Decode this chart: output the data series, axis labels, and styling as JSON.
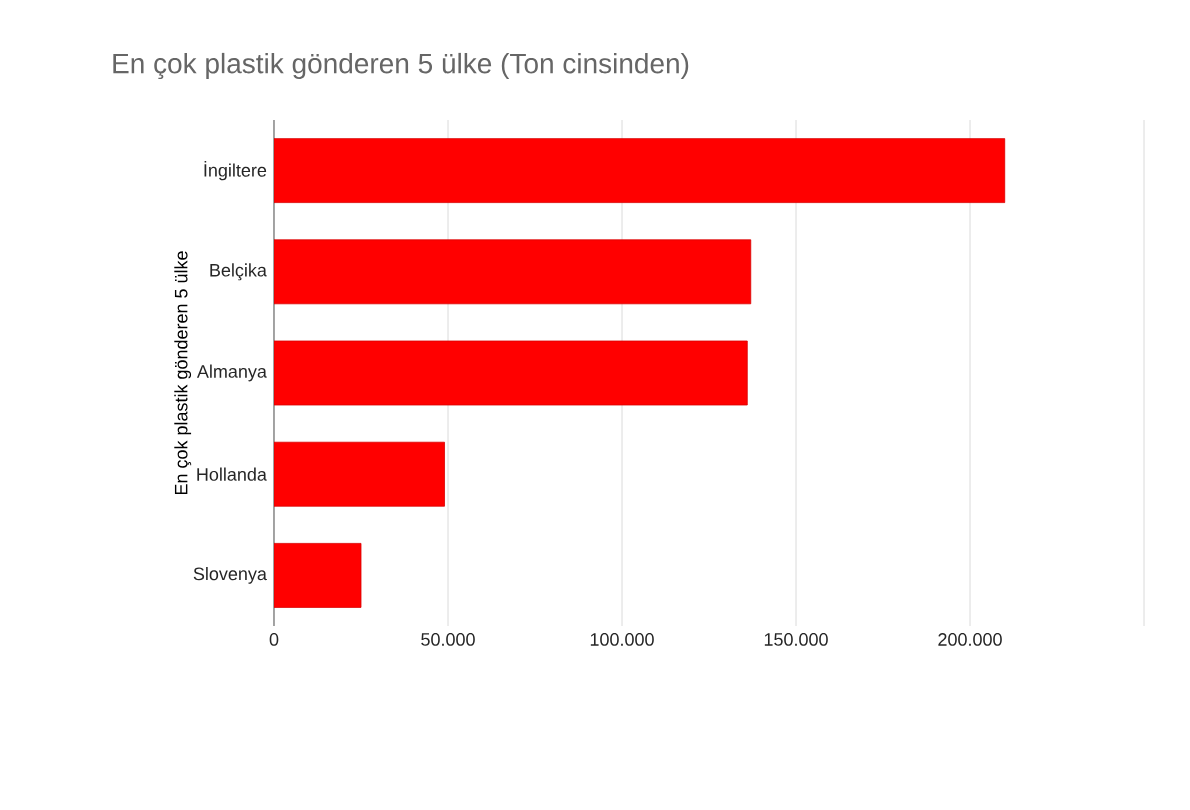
{
  "chart_data": {
    "type": "bar",
    "orientation": "horizontal",
    "title": "En çok plastik gönderen 5 ülke (Ton cinsinden)",
    "ylabel": "En çok plastik gönderen 5 ülke",
    "categories": [
      "İngiltere",
      "Belçika",
      "Almanya",
      "Hollanda",
      "Slovenya"
    ],
    "values": [
      210000,
      137000,
      136000,
      49000,
      25000
    ],
    "color": "#ff0000",
    "xlim": [
      0,
      250000
    ],
    "xticks": [
      {
        "value": 0,
        "label": "0"
      },
      {
        "value": 50000,
        "label": "50.000"
      },
      {
        "value": 100000,
        "label": "100.000"
      },
      {
        "value": 150000,
        "label": "150.000"
      },
      {
        "value": 200000,
        "label": "200.000"
      },
      {
        "value": 250000,
        "label": null
      }
    ],
    "grid": "x"
  }
}
